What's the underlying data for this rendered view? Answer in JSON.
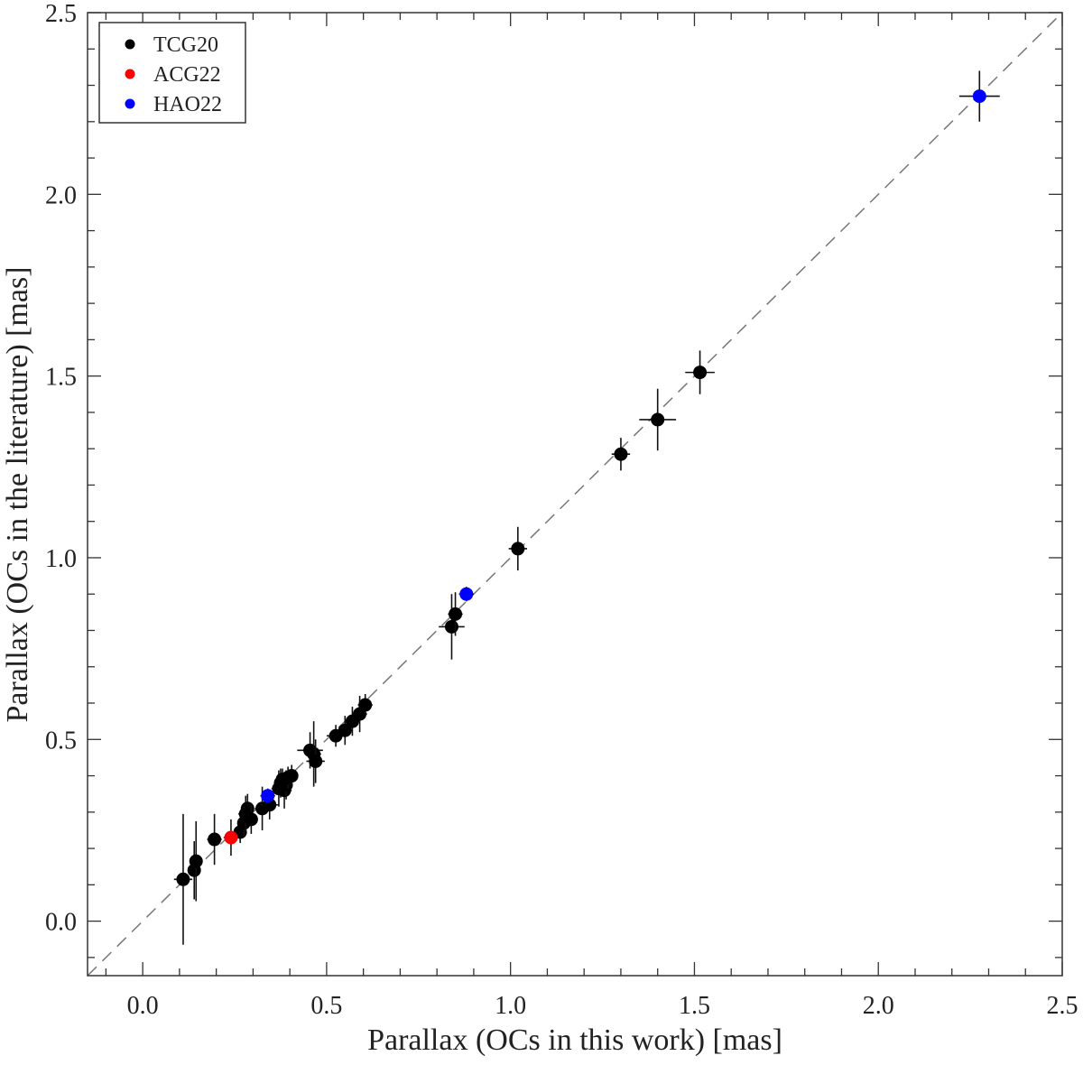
{
  "chart_data": {
    "type": "scatter",
    "title": "",
    "xlabel": "Parallax (OCs in this work) [mas]",
    "ylabel": "Parallax (OCs in the literature) [mas]",
    "xlim": [
      -0.15,
      2.5
    ],
    "ylim": [
      -0.15,
      2.5
    ],
    "xticks": [
      "0.0",
      "0.5",
      "1.0",
      "1.5",
      "2.0",
      "2.5"
    ],
    "yticks": [
      "0.0",
      "0.5",
      "1.0",
      "1.5",
      "2.0",
      "2.5"
    ],
    "reference_line": "y = x",
    "legend_position": "top-left",
    "series": [
      {
        "name": "TCG20",
        "color": "#000000",
        "points": [
          {
            "x": 0.11,
            "y": 0.115,
            "xerr": 0.025,
            "yerr": 0.18
          },
          {
            "x": 0.14,
            "y": 0.14,
            "xerr": 0.015,
            "yerr": 0.08
          },
          {
            "x": 0.145,
            "y": 0.165,
            "xerr": 0.015,
            "yerr": 0.11
          },
          {
            "x": 0.195,
            "y": 0.225,
            "xerr": 0.02,
            "yerr": 0.07
          },
          {
            "x": 0.265,
            "y": 0.245,
            "xerr": 0.015,
            "yerr": 0.03
          },
          {
            "x": 0.275,
            "y": 0.27,
            "xerr": 0.015,
            "yerr": 0.04
          },
          {
            "x": 0.28,
            "y": 0.295,
            "xerr": 0.02,
            "yerr": 0.05
          },
          {
            "x": 0.285,
            "y": 0.31,
            "xerr": 0.015,
            "yerr": 0.04
          },
          {
            "x": 0.295,
            "y": 0.28,
            "xerr": 0.015,
            "yerr": 0.04
          },
          {
            "x": 0.325,
            "y": 0.31,
            "xerr": 0.02,
            "yerr": 0.06
          },
          {
            "x": 0.345,
            "y": 0.32,
            "xerr": 0.025,
            "yerr": 0.04
          },
          {
            "x": 0.37,
            "y": 0.365,
            "xerr": 0.02,
            "yerr": 0.05
          },
          {
            "x": 0.375,
            "y": 0.38,
            "xerr": 0.015,
            "yerr": 0.04
          },
          {
            "x": 0.38,
            "y": 0.39,
            "xerr": 0.015,
            "yerr": 0.03
          },
          {
            "x": 0.385,
            "y": 0.36,
            "xerr": 0.02,
            "yerr": 0.05
          },
          {
            "x": 0.39,
            "y": 0.375,
            "xerr": 0.015,
            "yerr": 0.04
          },
          {
            "x": 0.395,
            "y": 0.395,
            "xerr": 0.015,
            "yerr": 0.03
          },
          {
            "x": 0.405,
            "y": 0.4,
            "xerr": 0.015,
            "yerr": 0.03
          },
          {
            "x": 0.455,
            "y": 0.47,
            "xerr": 0.035,
            "yerr": 0.05
          },
          {
            "x": 0.465,
            "y": 0.46,
            "xerr": 0.02,
            "yerr": 0.09
          },
          {
            "x": 0.47,
            "y": 0.44,
            "xerr": 0.025,
            "yerr": 0.06
          },
          {
            "x": 0.525,
            "y": 0.51,
            "xerr": 0.025,
            "yerr": 0.03
          },
          {
            "x": 0.55,
            "y": 0.525,
            "xerr": 0.02,
            "yerr": 0.04
          },
          {
            "x": 0.57,
            "y": 0.55,
            "xerr": 0.02,
            "yerr": 0.04
          },
          {
            "x": 0.59,
            "y": 0.57,
            "xerr": 0.02,
            "yerr": 0.05
          },
          {
            "x": 0.605,
            "y": 0.595,
            "xerr": 0.02,
            "yerr": 0.03
          },
          {
            "x": 0.84,
            "y": 0.81,
            "xerr": 0.035,
            "yerr": 0.09
          },
          {
            "x": 0.85,
            "y": 0.845,
            "xerr": 0.02,
            "yerr": 0.06
          },
          {
            "x": 1.02,
            "y": 1.025,
            "xerr": 0.025,
            "yerr": 0.06
          },
          {
            "x": 1.3,
            "y": 1.285,
            "xerr": 0.025,
            "yerr": 0.045
          },
          {
            "x": 1.4,
            "y": 1.38,
            "xerr": 0.05,
            "yerr": 0.085
          },
          {
            "x": 1.515,
            "y": 1.51,
            "xerr": 0.04,
            "yerr": 0.06
          }
        ]
      },
      {
        "name": "ACG22",
        "color": "#ff0000",
        "points": [
          {
            "x": 0.24,
            "y": 0.23,
            "xerr": 0.02,
            "yerr": 0.05
          }
        ]
      },
      {
        "name": "HAO22",
        "color": "#0000ff",
        "points": [
          {
            "x": 0.34,
            "y": 0.345,
            "xerr": 0.02,
            "yerr": 0.02
          },
          {
            "x": 0.88,
            "y": 0.9,
            "xerr": 0.02,
            "yerr": 0.02
          },
          {
            "x": 2.275,
            "y": 2.27,
            "xerr": 0.055,
            "yerr": 0.07
          }
        ]
      }
    ]
  }
}
